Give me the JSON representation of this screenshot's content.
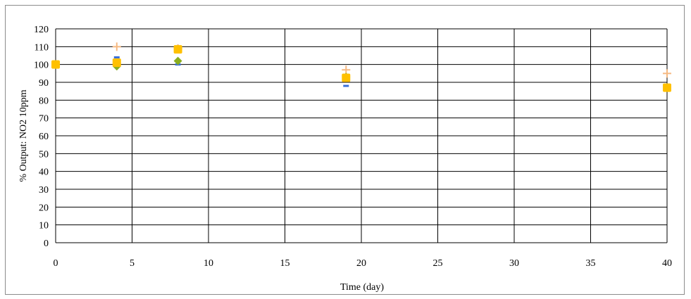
{
  "chart_data": {
    "type": "scatter",
    "title": "",
    "xlabel": "Time (day)",
    "ylabel": "% Output: NO2 10ppm",
    "xlim": [
      0,
      40
    ],
    "ylim": [
      0,
      120
    ],
    "xticks": [
      0,
      5,
      10,
      15,
      20,
      25,
      30,
      35,
      40
    ],
    "yticks": [
      0,
      10,
      20,
      30,
      40,
      50,
      60,
      70,
      80,
      90,
      100,
      110,
      120
    ],
    "grid": true,
    "legend": "none",
    "series": [
      {
        "color": "#f5b982",
        "marker": "plus",
        "points": [
          [
            0,
            100
          ],
          [
            4,
            110
          ],
          [
            8,
            109
          ],
          [
            19,
            97
          ],
          [
            40,
            95
          ]
        ]
      },
      {
        "color": "#3a6fd8",
        "marker": "dash",
        "points": [
          [
            0,
            100
          ],
          [
            4,
            104
          ],
          [
            8,
            100
          ],
          [
            19,
            88
          ],
          [
            40,
            87
          ]
        ]
      },
      {
        "color": "#8aae1e",
        "marker": "diamond",
        "points": [
          [
            0,
            100
          ],
          [
            4,
            99
          ],
          [
            8,
            102
          ],
          [
            19,
            93
          ],
          [
            40,
            87
          ]
        ]
      },
      {
        "color": "#ffc000",
        "marker": "square",
        "points": [
          [
            0,
            100
          ],
          [
            4,
            101
          ],
          [
            8,
            108.5
          ],
          [
            19,
            92.5
          ],
          [
            40,
            87
          ]
        ]
      }
    ]
  }
}
